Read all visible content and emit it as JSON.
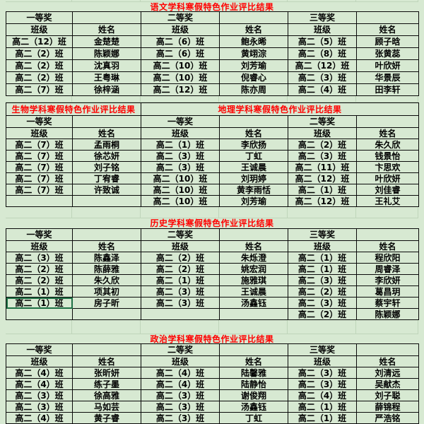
{
  "colors": {
    "background": "#d7e9d2",
    "grid_border": "#0a0a0a",
    "faint_gridline": "#bfd5ba",
    "title_red": "#ff0000",
    "selection_green": "#1e7145"
  },
  "tables": [
    {
      "title": "语文学科寒假特色作业评比结果",
      "prize_row": [
        "一等奖",
        "",
        "二等奖",
        "",
        "三等奖",
        ""
      ],
      "header_row": [
        "班级",
        "姓名",
        "班级",
        "姓名",
        "班级",
        "姓名"
      ],
      "rows": [
        [
          "高二（12）班",
          "金楚楚",
          "高二（6）班",
          "鲍永晞",
          "高二（5）班",
          "顾子晗"
        ],
        [
          "高二（2）班",
          "陈颖娜",
          "高二（6）班",
          "黄翊淙",
          "高二（8）班",
          "张黄蕊"
        ],
        [
          "高二（2）班",
          "沈真羽",
          "高二（10）班",
          "刘芳瑜",
          "高二（12）班",
          "叶欣妍"
        ],
        [
          "高二（2）班",
          "王粤琳",
          "高二（10）班",
          "倪睿心",
          "高二（3）班",
          "华景辰"
        ],
        [
          "高二（7）班",
          "徐梓涵",
          "高二（12）班",
          "陈亦周",
          "高二（4）班",
          "田李轩"
        ]
      ]
    },
    {
      "inline_titles": [
        {
          "text": "生物学科寒假特色作业评比结果",
          "span": 2
        },
        {
          "text": "地理学科寒假特色作业评比结果",
          "span": 4
        }
      ],
      "prize_row": [
        "一等奖",
        "",
        "一等奖",
        "",
        "二等奖",
        ""
      ],
      "header_row": [
        "班级",
        "姓名",
        "班级",
        "姓名",
        "班级",
        "姓名"
      ],
      "rows": [
        [
          "高二（7）班",
          "孟雨桐",
          "高二（1）班",
          "李欣扬",
          "高二（2）班",
          "朱久欣"
        ],
        [
          "高二（7）班",
          "徐芯妍",
          "高二（3）班",
          "丁虹",
          "高二（3）班",
          "钱景怡"
        ],
        [
          "高二（7）班",
          "刘子铭",
          "高二（3）班",
          "王诚晨",
          "高二（11）班",
          "卞思欢"
        ],
        [
          "高二（7）班",
          "丁宥睿",
          "高二（10）班",
          "刘玥婷",
          "高二（12）班",
          "叶欣妍"
        ],
        [
          "高二（7）班",
          "许致诚",
          "高二（10）班",
          "黄李雨恬",
          "高二（1）班",
          "刘佳睿"
        ],
        [
          "",
          "",
          "高二（10）班",
          "刘芳瑜",
          "高二（12）班",
          "王礼艾"
        ]
      ]
    },
    {
      "title": "历史学科寒假特色作业评比结果",
      "prize_row": [
        "一等奖",
        "",
        "二等奖",
        "",
        "三等奖",
        ""
      ],
      "header_row": [
        "班级",
        "姓名",
        "班级",
        "姓名",
        "班级",
        "姓名"
      ],
      "rows": [
        [
          "高二（3）班",
          "陈鑫泽",
          "高二（2）班",
          "朱烁澄",
          "高二（1）班",
          "程欣阳"
        ],
        [
          "高二（2）班",
          "陈薛雅",
          "高二（2）班",
          "姚宏润",
          "高二（1）班",
          "周睿泽"
        ],
        [
          "高二（2）班",
          "朱久欣",
          "高二（1）班",
          "施雅琪",
          "高二（3）班",
          "李欣妍"
        ],
        [
          "高二（1）班",
          "项其初",
          "高二（3）班",
          "王诚晨",
          "高二（2）班",
          "葛昌玥"
        ],
        [
          "高二（1）班",
          "房子昕",
          "高二（3）班",
          "汤鑫钰",
          "高二（3）班",
          "蔡宇轩"
        ],
        [
          "",
          "",
          "",
          "",
          "高二（2）班",
          "陈颖娜"
        ]
      ],
      "selected_cell": {
        "row": 4,
        "col": 0
      }
    },
    {
      "title": "政治学科寒假特色作业评比结果",
      "prize_row": [
        "一等奖",
        "",
        "二等奖",
        "",
        "三等奖",
        ""
      ],
      "header_row": [
        "班级",
        "姓名",
        "班级",
        "姓名",
        "班级",
        "姓名"
      ],
      "rows": [
        [
          "高二（4）班",
          "张昕妍",
          "高二（4）班",
          "陆馨雅",
          "高二（3）班",
          "刘清远"
        ],
        [
          "高二（4）班",
          "练子墨",
          "高二（4）班",
          "陆静怡",
          "高二（3）班",
          "吴献杰"
        ],
        [
          "高二（3）班",
          "徐高雅",
          "高二（3）班",
          "谢俊翔",
          "高二（4）班",
          "刘子聪"
        ],
        [
          "高二（3）班",
          "马如芸",
          "高二（3）班",
          "汤鑫钰",
          "高二（1）班",
          "薛锦程"
        ],
        [
          "高二（4）班",
          "黄子睿",
          "高二（3）班",
          "丁虹",
          "高二（1）班",
          "严浩铭"
        ]
      ]
    }
  ]
}
